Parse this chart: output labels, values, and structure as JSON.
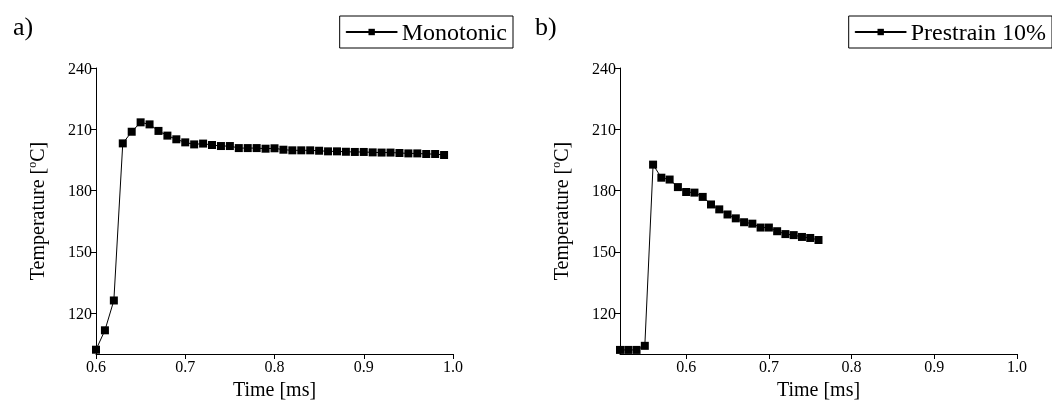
{
  "chart_data": [
    {
      "type": "line",
      "title": "a)",
      "xlabel": "Time [ms]",
      "ylabel": "Temperature [$^{o}$C]",
      "marker": "square",
      "line_style": "solid",
      "legend": "top right",
      "grid": false,
      "xlim": [
        0.6,
        1.0
      ],
      "xticks": [
        0.6,
        0.7,
        0.8,
        0.9,
        {
          "value": 1.0,
          "label": "1.0"
        }
      ],
      "ylim": [
        100,
        240
      ],
      "yticks": [
        120,
        150,
        180,
        210,
        240
      ],
      "series": [
        {
          "name": "Monotonic",
          "color": "#000000",
          "x": [
            0.6,
            0.61,
            0.62,
            0.63,
            0.64,
            0.65,
            0.66,
            0.67,
            0.68,
            0.69,
            0.7,
            0.71,
            0.72,
            0.73,
            0.74,
            0.75,
            0.76,
            0.77,
            0.78,
            0.79,
            0.8,
            0.81,
            0.82,
            0.83,
            0.84,
            0.85,
            0.86,
            0.87,
            0.88,
            0.89,
            0.9,
            0.91,
            0.92,
            0.93,
            0.94,
            0.95,
            0.96,
            0.97,
            0.98,
            0.99
          ],
          "values": [
            102.1,
            111.6,
            126.2,
            203.1,
            208.8,
            213.4,
            212.4,
            209.2,
            206.9,
            205.1,
            203.6,
            202.6,
            203.0,
            202.3,
            201.8,
            201.8,
            200.8,
            200.8,
            200.8,
            200.5,
            200.7,
            200.0,
            199.7,
            199.7,
            199.7,
            199.5,
            199.2,
            199.2,
            199.0,
            198.9,
            198.9,
            198.7,
            198.6,
            198.6,
            198.4,
            198.2,
            198.2,
            197.9,
            197.9,
            197.4
          ]
        }
      ]
    },
    {
      "type": "line",
      "title": "b)",
      "xlabel": "Time [ms]",
      "ylabel": "Temperature [$^{o}$C]",
      "marker": "square",
      "line_style": "solid",
      "legend": "top right",
      "grid": false,
      "xlim": [
        0.52,
        1.0
      ],
      "xticks": [
        0.6,
        0.7,
        0.8,
        0.9,
        {
          "value": 1.0,
          "label": "1.0"
        }
      ],
      "ylim": [
        100,
        240
      ],
      "yticks": [
        120,
        150,
        180,
        210,
        240
      ],
      "series": [
        {
          "name": "Prestrain 10%",
          "color": "#000000",
          "x": [
            0.52,
            0.53,
            0.54,
            0.55,
            0.56,
            0.57,
            0.58,
            0.59,
            0.6,
            0.61,
            0.62,
            0.63,
            0.64,
            0.65,
            0.66,
            0.67,
            0.68,
            0.69,
            0.7,
            0.71,
            0.72,
            0.73,
            0.74,
            0.75,
            0.76
          ],
          "values": [
            102.0,
            102.0,
            102.0,
            104.0,
            192.7,
            186.3,
            185.4,
            181.7,
            179.3,
            179.0,
            176.9,
            173.2,
            170.8,
            168.3,
            166.4,
            164.5,
            163.8,
            161.9,
            161.9,
            160.1,
            158.7,
            158.2,
            157.3,
            156.8,
            155.8
          ]
        }
      ]
    }
  ]
}
